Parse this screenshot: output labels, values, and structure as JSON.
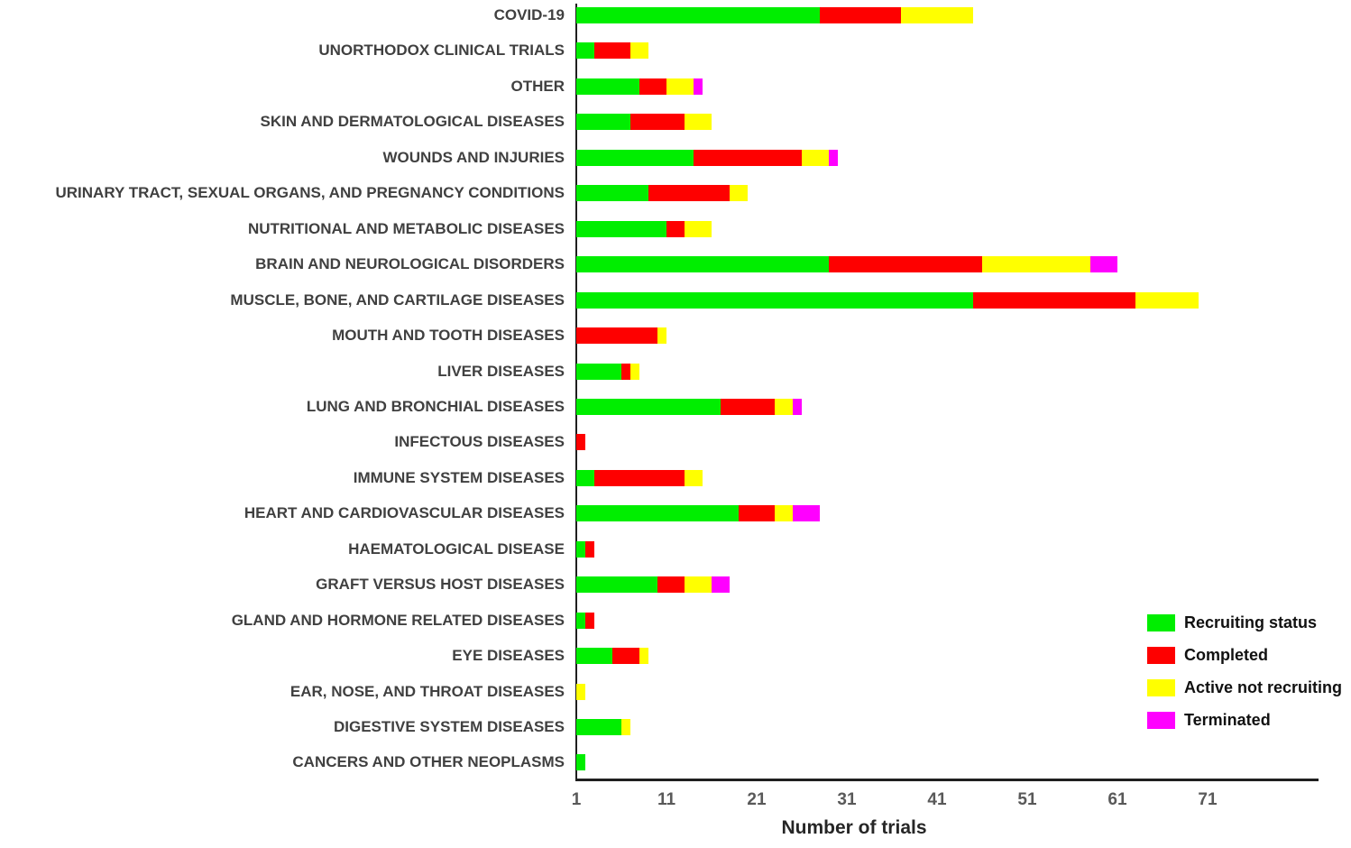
{
  "chart_data": {
    "type": "bar",
    "orientation": "horizontal",
    "stacked": true,
    "title": "",
    "xlabel": "Number of trials",
    "ylabel": "",
    "x_ticks": [
      1,
      11,
      21,
      31,
      41,
      51,
      61,
      71
    ],
    "x_min": 1,
    "x_max": 83,
    "grid": false,
    "legend_position": "inside-bottom-right",
    "bar_clip_min": 1,
    "categories": [
      "COVID-19",
      "UNORTHODOX CLINICAL TRIALS",
      "OTHER",
      "SKIN AND DERMATOLOGICAL DISEASES",
      "WOUNDS AND INJURIES",
      "URINARY TRACT, SEXUAL ORGANS, AND PREGNANCY CONDITIONS",
      "NUTRITIONAL AND METABOLIC DISEASES",
      "BRAIN AND NEUROLOGICAL DISORDERS",
      "MUSCLE, BONE, AND CARTILAGE DISEASES",
      "MOUTH AND TOOTH DISEASES",
      "LIVER DISEASES",
      "LUNG AND BRONCHIAL DISEASES",
      "INFECTOUS DISEASES",
      "IMMUNE SYSTEM DISEASES",
      "HEART AND CARDIOVASCULAR DISEASES",
      "HAEMATOLOGICAL DISEASE",
      "GRAFT VERSUS HOST DISEASES",
      "GLAND AND HORMONE RELATED DISEASES",
      "EYE DISEASES",
      "EAR, NOSE, AND THROAT DISEASES",
      "DIGESTIVE SYSTEM DISEASES",
      "CANCERS AND OTHER NEOPLASMS"
    ],
    "series": [
      {
        "name": "Recruiting status",
        "color": "#00ee00",
        "values": [
          28,
          3,
          8,
          7,
          14,
          9,
          11,
          29,
          45,
          0,
          6,
          17,
          0,
          3,
          19,
          2,
          10,
          2,
          5,
          0,
          6,
          2
        ]
      },
      {
        "name": "Completed",
        "color": "#fe0000",
        "values": [
          9,
          4,
          3,
          6,
          12,
          9,
          2,
          17,
          18,
          10,
          1,
          6,
          2,
          10,
          4,
          1,
          3,
          1,
          3,
          0,
          0,
          0
        ]
      },
      {
        "name": "Active not recruiting",
        "color": "#ffff00",
        "values": [
          8,
          2,
          3,
          3,
          3,
          2,
          3,
          12,
          7,
          1,
          1,
          2,
          0,
          2,
          2,
          0,
          3,
          0,
          1,
          2,
          1,
          0
        ]
      },
      {
        "name": "Terminated",
        "color": "#ff00ff",
        "values": [
          0,
          0,
          1,
          0,
          1,
          0,
          0,
          3,
          0,
          0,
          0,
          1,
          0,
          0,
          3,
          0,
          2,
          0,
          0,
          0,
          0,
          0
        ]
      }
    ],
    "totals": [
      45,
      9,
      15,
      16,
      30,
      20,
      16,
      61,
      70,
      11,
      8,
      26,
      2,
      15,
      28,
      3,
      18,
      3,
      9,
      2,
      7,
      2
    ]
  },
  "style": {
    "axis_color": "#1f1f1f",
    "category_label_color": "#404040",
    "tick_label_color": "#595959",
    "xlabel_color": "#262626",
    "legend_text_color": "#111111",
    "background": "#ffffff"
  }
}
